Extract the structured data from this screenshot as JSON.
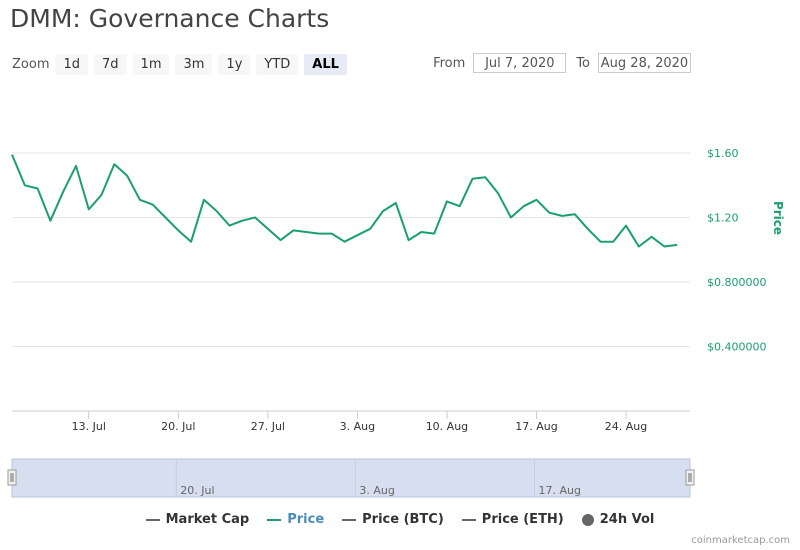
{
  "title": "DMM: Governance Charts",
  "zoom": {
    "label": "Zoom",
    "buttons": [
      "1d",
      "7d",
      "1m",
      "3m",
      "1y",
      "YTD",
      "ALL"
    ],
    "active": "ALL"
  },
  "range": {
    "from_label": "From",
    "from_value": "Jul 7, 2020",
    "to_label": "To",
    "to_value": "Aug 28, 2020"
  },
  "colors": {
    "price": "#1a9f6e",
    "grid": "#e6e6e6",
    "navigator_fill": "#d7deef",
    "axis_text": "#333333",
    "legend_inactive": "#666666"
  },
  "chart_data": {
    "type": "line",
    "title": "DMM: Governance Charts",
    "ylabel": "Price",
    "ylim": [
      0,
      1.6
    ],
    "y_ticks": [
      0.4,
      0.8,
      1.2,
      1.6
    ],
    "y_tick_labels": [
      "$0.400000",
      "$0.800000",
      "$1.20",
      "$1.60"
    ],
    "x_tick_labels": [
      "13. Jul",
      "20. Jul",
      "27. Jul",
      "3. Aug",
      "10. Aug",
      "17. Aug",
      "24. Aug"
    ],
    "x_tick_dates": [
      "2020-07-13",
      "2020-07-20",
      "2020-07-27",
      "2020-08-03",
      "2020-08-10",
      "2020-08-17",
      "2020-08-24"
    ],
    "x_range": [
      "2020-07-07",
      "2020-08-29"
    ],
    "grid": true,
    "series": [
      {
        "name": "Price",
        "x": [
          "2020-07-07",
          "2020-07-08",
          "2020-07-09",
          "2020-07-10",
          "2020-07-11",
          "2020-07-12",
          "2020-07-13",
          "2020-07-14",
          "2020-07-15",
          "2020-07-16",
          "2020-07-17",
          "2020-07-18",
          "2020-07-19",
          "2020-07-20",
          "2020-07-21",
          "2020-07-22",
          "2020-07-23",
          "2020-07-24",
          "2020-07-25",
          "2020-07-26",
          "2020-07-27",
          "2020-07-28",
          "2020-07-29",
          "2020-07-30",
          "2020-07-31",
          "2020-08-01",
          "2020-08-02",
          "2020-08-03",
          "2020-08-04",
          "2020-08-05",
          "2020-08-06",
          "2020-08-07",
          "2020-08-08",
          "2020-08-09",
          "2020-08-10",
          "2020-08-11",
          "2020-08-12",
          "2020-08-13",
          "2020-08-14",
          "2020-08-15",
          "2020-08-16",
          "2020-08-17",
          "2020-08-18",
          "2020-08-19",
          "2020-08-20",
          "2020-08-21",
          "2020-08-22",
          "2020-08-23",
          "2020-08-24",
          "2020-08-25",
          "2020-08-26",
          "2020-08-27",
          "2020-08-28"
        ],
        "values": [
          1.59,
          1.4,
          1.38,
          1.18,
          1.36,
          1.52,
          1.25,
          1.34,
          1.53,
          1.46,
          1.31,
          1.28,
          1.2,
          1.12,
          1.05,
          1.31,
          1.24,
          1.15,
          1.18,
          1.2,
          1.13,
          1.06,
          1.12,
          1.11,
          1.1,
          1.1,
          1.05,
          1.09,
          1.13,
          1.24,
          1.29,
          1.06,
          1.11,
          1.1,
          1.3,
          1.27,
          1.44,
          1.45,
          1.35,
          1.2,
          1.27,
          1.31,
          1.23,
          1.21,
          1.22,
          1.13,
          1.05,
          1.05,
          1.15,
          1.02,
          1.08,
          1.02,
          1.03
        ]
      }
    ],
    "navigator_labels": [
      "20. Jul",
      "3. Aug",
      "17. Aug"
    ],
    "navigator_label_dates": [
      "2020-07-20",
      "2020-08-03",
      "2020-08-17"
    ]
  },
  "legend": [
    {
      "label": "Market Cap",
      "marker": "line",
      "color": "#666666"
    },
    {
      "label": "Price",
      "marker": "line",
      "color": "#1a9f6e"
    },
    {
      "label": "Price (BTC)",
      "marker": "line",
      "color": "#666666"
    },
    {
      "label": "Price (ETH)",
      "marker": "line",
      "color": "#666666"
    },
    {
      "label": "24h Vol",
      "marker": "dot",
      "color": "#666666"
    }
  ],
  "credits": "coinmarketcap.com"
}
